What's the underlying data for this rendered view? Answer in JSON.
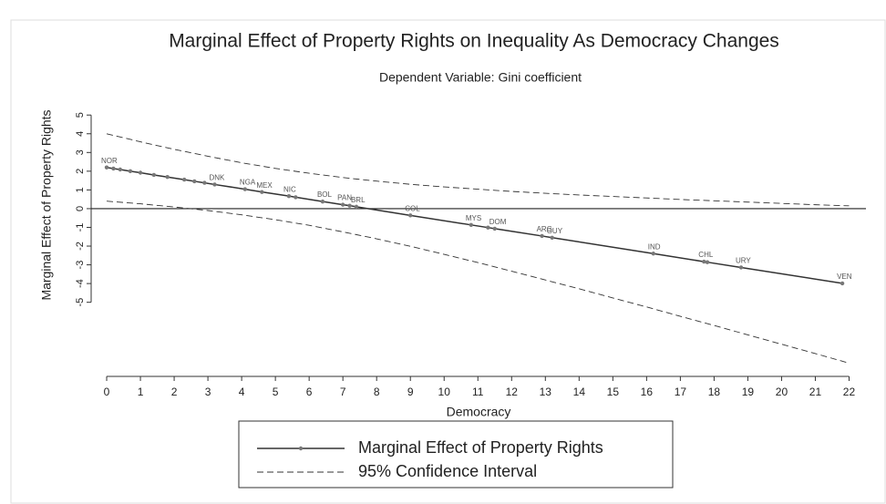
{
  "chart_data": {
    "type": "line",
    "title": "Marginal Effect of Property Rights on Inequality As Democracy Changes",
    "subtitle": "Dependent Variable: Gini coefficient",
    "x_label": "Democracy",
    "y_label": "Marginal Effect of Property Rights",
    "xlim": [
      -0.46,
      22.5
    ],
    "ylim": [
      -9.3,
      5.4
    ],
    "xticks": [
      0,
      1,
      2,
      3,
      4,
      5,
      6,
      7,
      8,
      9,
      10,
      11,
      12,
      13,
      14,
      15,
      16,
      17,
      18,
      19,
      20,
      21,
      22
    ],
    "yticks": [
      5,
      4,
      3,
      2,
      1,
      0,
      -1,
      -2,
      -3,
      -4,
      -5
    ],
    "series": [
      {
        "name": "Marginal Effect of Property Rights",
        "color": "#333333",
        "marker_color": "#777777",
        "x": [
          0,
          0.2,
          0.4,
          0.7,
          1.0,
          1.4,
          1.8,
          2.3,
          2.6,
          2.9,
          3.2,
          4.1,
          4.6,
          5.4,
          5.6,
          6.4,
          7.0,
          7.2,
          7.4,
          9.0,
          10.8,
          11.3,
          11.5,
          12.9,
          13.2,
          16.2,
          17.7,
          17.8,
          18.8,
          21.8
        ],
        "values": [
          2.2,
          2.14,
          2.09,
          2.0,
          1.92,
          1.8,
          1.69,
          1.55,
          1.46,
          1.38,
          1.29,
          1.04,
          0.89,
          0.67,
          0.61,
          0.38,
          0.21,
          0.16,
          0.1,
          -0.36,
          -0.87,
          -1.01,
          -1.07,
          -1.46,
          -1.55,
          -2.4,
          -2.83,
          -2.86,
          -3.14,
          -3.99
        ],
        "point_labels": [
          "NOR",
          null,
          null,
          null,
          null,
          null,
          null,
          null,
          null,
          null,
          "DNK",
          "NGA",
          "MEX",
          "NIC",
          null,
          "BOL",
          "PAN",
          null,
          "BRL",
          "COL",
          "MYS",
          null,
          "DOM",
          "ARG",
          "GUY",
          "IND",
          "CHL",
          null,
          "URY",
          "VEN"
        ]
      },
      {
        "name": "95% Confidence Interval",
        "color": "#333333",
        "dashed": true,
        "x": [
          0,
          1,
          2,
          3,
          4,
          5,
          6,
          7,
          8,
          9,
          10,
          11,
          12,
          13,
          14,
          15,
          16,
          17,
          18,
          19,
          20,
          21,
          22
        ],
        "values": [
          4.0,
          3.57,
          3.17,
          2.8,
          2.45,
          2.15,
          1.89,
          1.66,
          1.47,
          1.3,
          1.16,
          1.04,
          0.92,
          0.82,
          0.73,
          0.65,
          0.57,
          0.49,
          0.42,
          0.35,
          0.28,
          0.21,
          0.15
        ],
        "lower": [
          0.4,
          0.26,
          0.09,
          -0.1,
          -0.33,
          -0.59,
          -0.89,
          -1.24,
          -1.61,
          -2.01,
          -2.44,
          -2.88,
          -3.34,
          -3.81,
          -4.28,
          -4.77,
          -5.25,
          -5.75,
          -6.24,
          -6.74,
          -7.24,
          -7.74,
          -8.25
        ]
      }
    ]
  }
}
